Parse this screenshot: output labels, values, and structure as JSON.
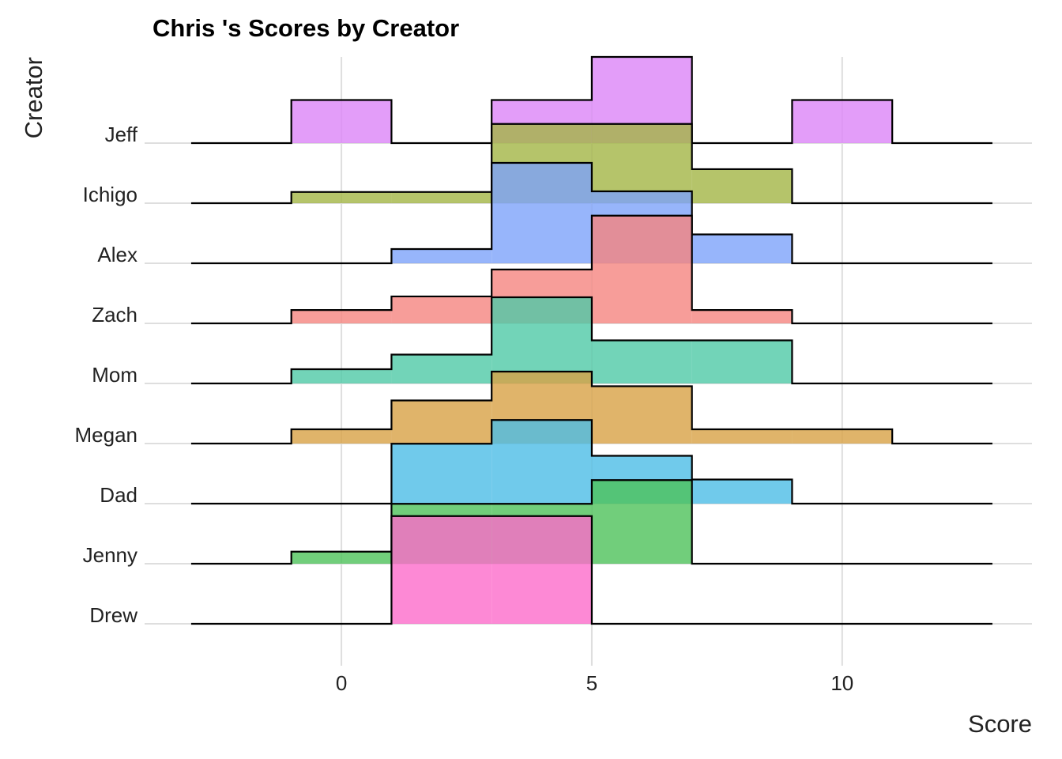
{
  "chart_data": {
    "type": "ridgeline_histogram",
    "title": "Chris 's Scores by Creator",
    "x_label": "Score",
    "y_label": "Creator",
    "bins": [
      -3,
      -1,
      1,
      3,
      5,
      7,
      9,
      11,
      13
    ],
    "xlim": [
      -3.93,
      13.79
    ],
    "xticks": [
      0,
      5,
      10
    ],
    "grid": true,
    "series": [
      {
        "name": "Jeff",
        "color": "#dc84f7",
        "values": [
          0,
          0.1,
          0,
          0.1,
          0.2,
          0,
          0.1,
          0
        ]
      },
      {
        "name": "Ichigo",
        "color": "#a3b545",
        "values": [
          0,
          0.026,
          0.026,
          0.184,
          0.184,
          0.079,
          0,
          0
        ]
      },
      {
        "name": "Alex",
        "color": "#7da2fa",
        "values": [
          0,
          0,
          0.033,
          0.233,
          0.167,
          0.067,
          0,
          0
        ]
      },
      {
        "name": "Zach",
        "color": "#f5857f",
        "values": [
          0,
          0.031,
          0.0625,
          0.125,
          0.25,
          0.031,
          0,
          0
        ]
      },
      {
        "name": "Mom",
        "color": "#4fc9a6",
        "values": [
          0,
          0.033,
          0.067,
          0.2,
          0.1,
          0.1,
          0,
          0
        ]
      },
      {
        "name": "Megan",
        "color": "#d8a145",
        "values": [
          0,
          0.033,
          0.1,
          0.167,
          0.133,
          0.033,
          0.033,
          0
        ]
      },
      {
        "name": "Dad",
        "color": "#4cbde6",
        "values": [
          0,
          0,
          0.139,
          0.194,
          0.111,
          0.056,
          0,
          0
        ]
      },
      {
        "name": "Jenny",
        "color": "#4dc25a",
        "values": [
          0,
          0.028,
          0.139,
          0.139,
          0.194,
          0,
          0,
          0
        ]
      },
      {
        "name": "Drew",
        "color": "#fd6bca",
        "values": [
          0,
          0,
          0.25,
          0.25,
          0,
          0,
          0,
          0
        ]
      }
    ]
  }
}
